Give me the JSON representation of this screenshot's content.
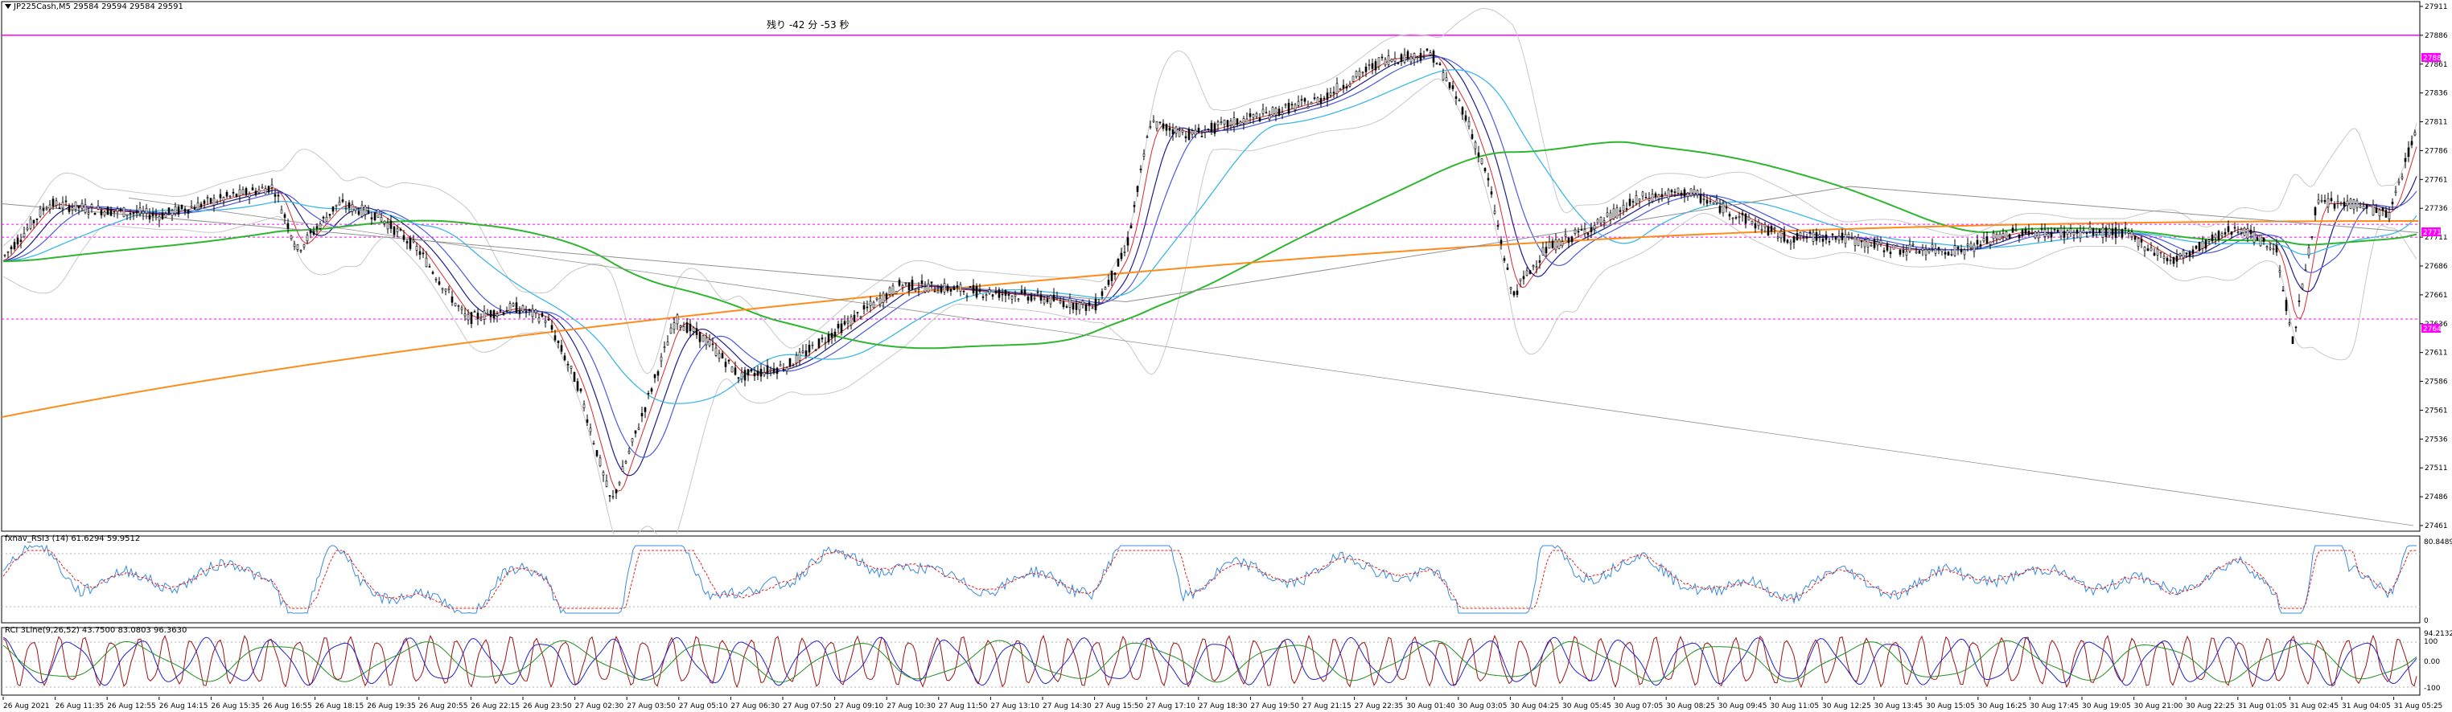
{
  "header": {
    "symbol_line": "JP225Cash,M5  29584 29594 29584 29591",
    "countdown": "残り -42 分 -53 秒"
  },
  "colors": {
    "candle": "#000000",
    "ma_red": "#e0262a",
    "ma_navy": "#1d1d8a",
    "ma_blue": "#4a5ae0",
    "ma_cyan": "#3cb8e8",
    "ma_gray": "#909090",
    "ma_green": "#2fb52f",
    "ma_orange": "#ff8c1a",
    "bollinger": "#c8c8c8",
    "level_line": "#ff00ff",
    "rsi_line": "#3a8be0",
    "rsi_signal": "#e02020",
    "stoch_red": "#a01010",
    "stoch_blue": "#2020d0",
    "stoch_green": "#1f8f1f"
  },
  "price_axis": {
    "ticks": [
      "27911",
      "27886",
      "27861",
      "27836",
      "27811",
      "27786",
      "27761",
      "27736",
      "27711",
      "27686",
      "27661",
      "27636",
      "27611",
      "27586",
      "27561",
      "27536",
      "27511",
      "27486",
      "27461"
    ]
  },
  "level_tags": {
    "upper": "27886",
    "middle": "27711",
    "lower": "27640"
  },
  "rsi_panel": {
    "title": "fxnav_RSI3 (14) 61.6294 59.9512",
    "axis_top": "80.8489",
    "axis_bottom": "0"
  },
  "stoch_panel": {
    "title": "RCI 3Line(9,26,52) 43.7500 83.0803 96.3630",
    "axis_top": "94.2132",
    "axis_labels": [
      "100",
      "0.00",
      "-100"
    ]
  },
  "time_axis": {
    "labels": [
      "26 Aug 2021",
      "26 Aug 11:35",
      "26 Aug 12:55",
      "26 Aug 14:15",
      "26 Aug 15:35",
      "26 Aug 16:55",
      "26 Aug 18:15",
      "26 Aug 19:35",
      "26 Aug 20:55",
      "26 Aug 22:15",
      "26 Aug 23:50",
      "27 Aug 02:30",
      "27 Aug 03:50",
      "27 Aug 05:10",
      "27 Aug 06:30",
      "27 Aug 07:50",
      "27 Aug 09:10",
      "27 Aug 10:30",
      "27 Aug 11:50",
      "27 Aug 13:10",
      "27 Aug 14:30",
      "27 Aug 15:50",
      "27 Aug 17:10",
      "27 Aug 18:30",
      "27 Aug 19:50",
      "27 Aug 21:15",
      "27 Aug 22:35",
      "30 Aug 01:40",
      "30 Aug 03:05",
      "30 Aug 04:25",
      "30 Aug 05:45",
      "30 Aug 07:05",
      "30 Aug 08:25",
      "30 Aug 09:45",
      "30 Aug 11:05",
      "30 Aug 12:25",
      "30 Aug 13:45",
      "30 Aug 15:05",
      "30 Aug 16:25",
      "30 Aug 17:45",
      "30 Aug 19:05",
      "30 Aug 21:00",
      "30 Aug 22:25",
      "31 Aug 01:05",
      "31 Aug 02:45",
      "31 Aug 04:05",
      "31 Aug 05:25"
    ]
  }
}
